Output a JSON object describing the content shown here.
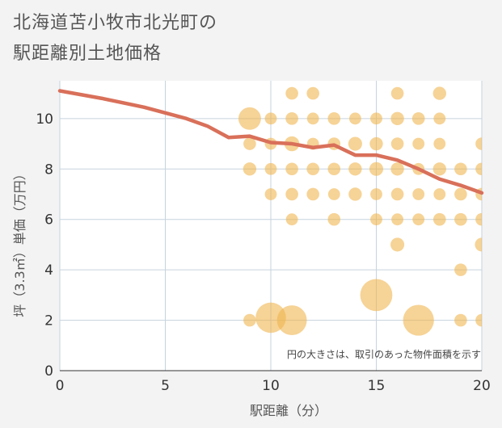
{
  "title_line1": "北海道苫小牧市北光町の",
  "title_line2": "駅距離別土地価格",
  "colors": {
    "bubble": "#f0b550",
    "line": "#d9705a",
    "grid": "#c6d3de",
    "plot_bg": "#ffffff"
  },
  "chart_data": {
    "type": "scatter",
    "xlabel": "駅距離（分）",
    "ylabel": "坪（3.3㎡）単価（万円）",
    "xlim": [
      0,
      20
    ],
    "ylim": [
      0,
      11.5
    ],
    "xticks": [
      0,
      5,
      10,
      15,
      20
    ],
    "yticks": [
      0,
      2,
      4,
      6,
      8,
      10
    ],
    "note": "円の大きさは、取引のあった物件面積を示す",
    "bubbles": [
      {
        "x": 9,
        "y": 10,
        "s": 3.2
      },
      {
        "x": 9,
        "y": 9,
        "s": 1
      },
      {
        "x": 9,
        "y": 8,
        "s": 1.1
      },
      {
        "x": 9,
        "y": 2,
        "s": 1
      },
      {
        "x": 10,
        "y": 10,
        "s": 0.9
      },
      {
        "x": 10,
        "y": 9,
        "s": 0.9
      },
      {
        "x": 10,
        "y": 8,
        "s": 0.9
      },
      {
        "x": 10,
        "y": 7,
        "s": 0.9
      },
      {
        "x": 10,
        "y": 2.1,
        "s": 5.8
      },
      {
        "x": 11,
        "y": 11,
        "s": 1
      },
      {
        "x": 11,
        "y": 10,
        "s": 1
      },
      {
        "x": 11,
        "y": 9,
        "s": 1.4
      },
      {
        "x": 11,
        "y": 8,
        "s": 1
      },
      {
        "x": 11,
        "y": 7,
        "s": 1
      },
      {
        "x": 11,
        "y": 6,
        "s": 0.9
      },
      {
        "x": 11,
        "y": 2,
        "s": 5.6
      },
      {
        "x": 12,
        "y": 11,
        "s": 1
      },
      {
        "x": 12,
        "y": 10,
        "s": 0.9
      },
      {
        "x": 12,
        "y": 9,
        "s": 0.9
      },
      {
        "x": 12,
        "y": 8,
        "s": 1
      },
      {
        "x": 12,
        "y": 7,
        "s": 1
      },
      {
        "x": 13,
        "y": 10,
        "s": 1
      },
      {
        "x": 13,
        "y": 9,
        "s": 1
      },
      {
        "x": 13,
        "y": 8,
        "s": 1
      },
      {
        "x": 13,
        "y": 7,
        "s": 0.9
      },
      {
        "x": 13,
        "y": 6,
        "s": 1
      },
      {
        "x": 14,
        "y": 10,
        "s": 0.9
      },
      {
        "x": 14,
        "y": 9,
        "s": 1.2
      },
      {
        "x": 14,
        "y": 8,
        "s": 1.1
      },
      {
        "x": 14,
        "y": 7,
        "s": 1.1
      },
      {
        "x": 15,
        "y": 10,
        "s": 0.9
      },
      {
        "x": 15,
        "y": 9,
        "s": 1.1
      },
      {
        "x": 15,
        "y": 8,
        "s": 1.2
      },
      {
        "x": 15,
        "y": 7,
        "s": 0.9
      },
      {
        "x": 15,
        "y": 6,
        "s": 0.9
      },
      {
        "x": 15,
        "y": 3,
        "s": 6.5
      },
      {
        "x": 16,
        "y": 11,
        "s": 1
      },
      {
        "x": 16,
        "y": 10,
        "s": 1.1
      },
      {
        "x": 16,
        "y": 9,
        "s": 1
      },
      {
        "x": 16,
        "y": 8,
        "s": 1.1
      },
      {
        "x": 16,
        "y": 7,
        "s": 1
      },
      {
        "x": 16,
        "y": 6,
        "s": 0.9
      },
      {
        "x": 16,
        "y": 5,
        "s": 1.2
      },
      {
        "x": 17,
        "y": 10,
        "s": 1
      },
      {
        "x": 17,
        "y": 9,
        "s": 0.9
      },
      {
        "x": 17,
        "y": 8,
        "s": 0.9
      },
      {
        "x": 17,
        "y": 7,
        "s": 0.9
      },
      {
        "x": 17,
        "y": 6,
        "s": 0.9
      },
      {
        "x": 17,
        "y": 2,
        "s": 6
      },
      {
        "x": 18,
        "y": 11,
        "s": 1.1
      },
      {
        "x": 18,
        "y": 10,
        "s": 0.9
      },
      {
        "x": 18,
        "y": 9,
        "s": 0.9
      },
      {
        "x": 18,
        "y": 8,
        "s": 1.1
      },
      {
        "x": 18,
        "y": 7,
        "s": 0.9
      },
      {
        "x": 18,
        "y": 6,
        "s": 1
      },
      {
        "x": 19,
        "y": 8,
        "s": 1
      },
      {
        "x": 19,
        "y": 7,
        "s": 1
      },
      {
        "x": 19,
        "y": 6,
        "s": 1
      },
      {
        "x": 19,
        "y": 4,
        "s": 1
      },
      {
        "x": 19,
        "y": 2,
        "s": 1
      },
      {
        "x": 20,
        "y": 9,
        "s": 1
      },
      {
        "x": 20,
        "y": 8,
        "s": 1
      },
      {
        "x": 20,
        "y": 7,
        "s": 1
      },
      {
        "x": 20,
        "y": 6,
        "s": 1
      },
      {
        "x": 20,
        "y": 5,
        "s": 1.2
      },
      {
        "x": 20,
        "y": 2,
        "s": 1
      }
    ],
    "trend": {
      "x": [
        0,
        2,
        4,
        6,
        7,
        8,
        9,
        10,
        11,
        12,
        13,
        14,
        15,
        16,
        17,
        18,
        19,
        20
      ],
      "y": [
        11.1,
        10.8,
        10.45,
        10.0,
        9.7,
        9.25,
        9.3,
        9.05,
        9.0,
        8.85,
        8.95,
        8.55,
        8.55,
        8.35,
        8.0,
        7.6,
        7.35,
        7.05
      ]
    }
  }
}
